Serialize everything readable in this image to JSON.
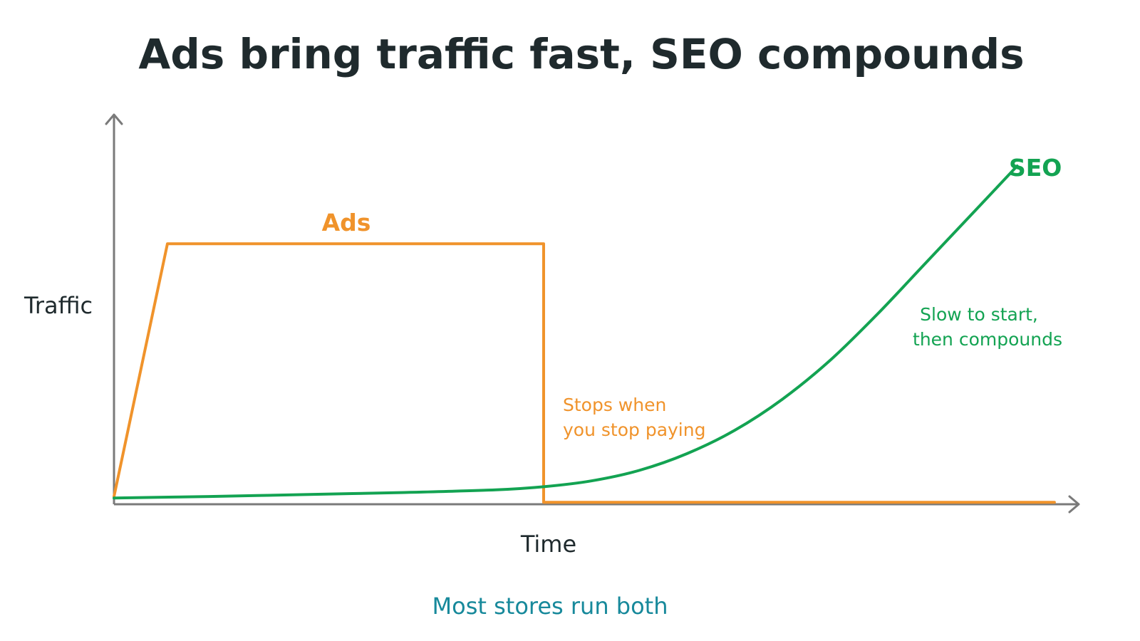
{
  "chart_data": {
    "type": "line",
    "title": "Ads bring traffic fast, SEO compounds",
    "xlabel": "Time",
    "ylabel": "Traffic",
    "xlim": [
      0,
      100
    ],
    "ylim": [
      0,
      100
    ],
    "grid": false,
    "series": [
      {
        "name": "Ads",
        "color": "#f0932b",
        "points": [
          [
            0,
            2
          ],
          [
            5.6,
            67
          ],
          [
            45,
            67
          ],
          [
            45,
            0.5
          ],
          [
            98.5,
            0.5
          ]
        ]
      },
      {
        "name": "SEO",
        "color": "#13a352",
        "points": [
          [
            0,
            1.6
          ],
          [
            10,
            2
          ],
          [
            20,
            2.5
          ],
          [
            30,
            3
          ],
          [
            40,
            3.7
          ],
          [
            45,
            4.5
          ],
          [
            50,
            6
          ],
          [
            55,
            8.7
          ],
          [
            60,
            13
          ],
          [
            65,
            19
          ],
          [
            70,
            27
          ],
          [
            75,
            37
          ],
          [
            80,
            49
          ],
          [
            85,
            62
          ],
          [
            90,
            75
          ],
          [
            94.6,
            87
          ]
        ]
      }
    ],
    "annotations": [
      {
        "id": "ads-note",
        "color": "#f0932b",
        "lines": [
          "Stops when",
          "you stop paying"
        ]
      },
      {
        "id": "seo-note",
        "color": "#13a352",
        "lines": [
          "Slow to start,",
          "then compounds"
        ]
      }
    ],
    "footer": "Most stores run both",
    "footer_color": "#17899b",
    "axis_color": "#7a7a7a",
    "title_color": "#1f2a2d"
  }
}
